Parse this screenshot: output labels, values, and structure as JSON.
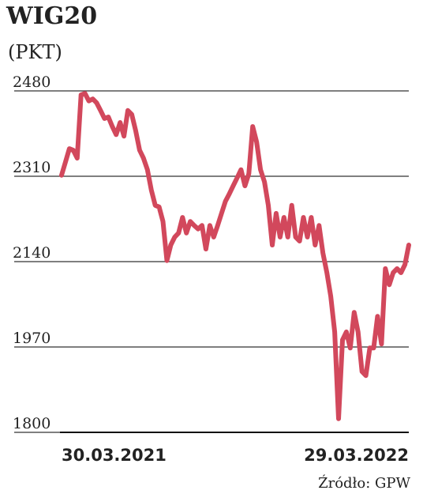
{
  "chart_data": {
    "type": "line",
    "title": "WIG20",
    "subtitle": "(PKT)",
    "source": "Źródło: GPW",
    "categories": [
      "30.03.2021",
      null,
      null,
      null,
      null,
      null,
      null,
      null,
      null,
      null,
      null,
      null,
      null,
      null,
      null,
      null,
      null,
      null,
      null,
      null,
      null,
      null,
      null,
      null,
      null,
      null,
      null,
      null,
      null,
      null,
      null,
      null,
      null,
      null,
      null,
      null,
      null,
      null,
      null,
      null,
      null,
      null,
      null,
      null,
      null,
      null,
      null,
      null,
      null,
      null,
      null,
      null,
      null,
      null,
      null,
      null,
      null,
      null,
      null,
      null,
      null,
      null,
      null,
      null,
      null,
      null,
      null,
      null,
      null,
      null,
      null,
      null,
      null,
      null,
      null,
      null,
      null,
      null,
      null,
      null,
      null,
      null,
      null,
      null,
      null,
      null,
      null,
      null,
      null,
      "29.03.2022"
    ],
    "series": [
      {
        "name": "WIG20",
        "color": "#d2485c",
        "values": [
          2312,
          2338,
          2365,
          2362,
          2346,
          2472,
          2475,
          2460,
          2464,
          2456,
          2441,
          2425,
          2428,
          2409,
          2393,
          2417,
          2390,
          2441,
          2433,
          2401,
          2362,
          2346,
          2323,
          2283,
          2252,
          2249,
          2220,
          2142,
          2173,
          2189,
          2197,
          2228,
          2197,
          2220,
          2212,
          2205,
          2212,
          2165,
          2212,
          2189,
          2212,
          2236,
          2260,
          2275,
          2291,
          2307,
          2323,
          2291,
          2315,
          2409,
          2378,
          2323,
          2299,
          2252,
          2173,
          2236,
          2189,
          2228,
          2189,
          2252,
          2189,
          2181,
          2228,
          2189,
          2228,
          2173,
          2212,
          2157,
          2118,
          2071,
          2000,
          1827,
          1984,
          2000,
          1968,
          2039,
          2000,
          1921,
          1913,
          1968,
          1968,
          2031,
          1976,
          2126,
          2094,
          2118,
          2126,
          2118,
          2134,
          2173
        ]
      }
    ],
    "ylim": [
      1800,
      2480
    ],
    "yticks": [
      1800,
      1970,
      2140,
      2310,
      2480
    ],
    "grid": true
  }
}
